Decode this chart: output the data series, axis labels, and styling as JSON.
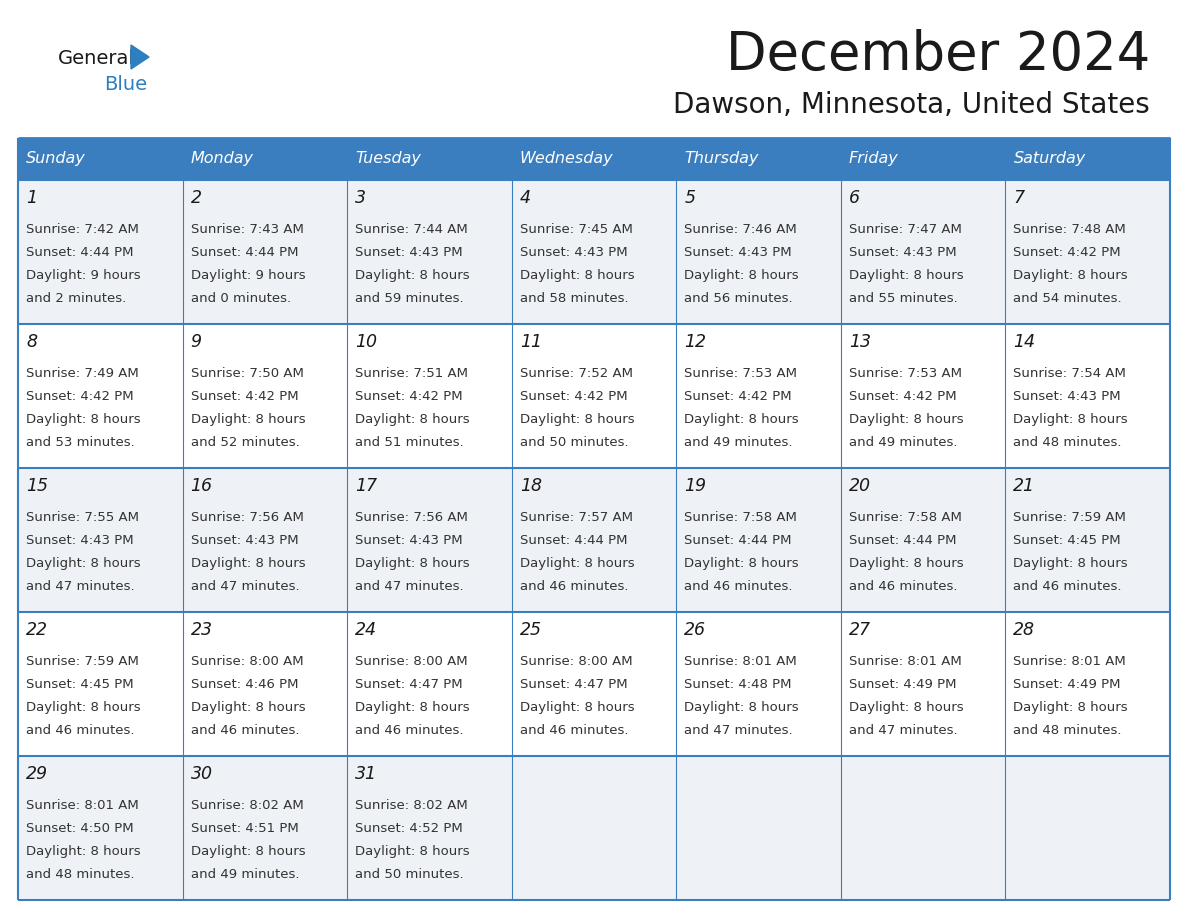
{
  "title": "December 2024",
  "subtitle": "Dawson, Minnesota, United States",
  "header_bg_color": "#3a7ebf",
  "header_text_color": "#FFFFFF",
  "border_color": "#3a7ebf",
  "cell_bg_light": "#eef2f7",
  "cell_bg_white": "#FFFFFF",
  "day_headers": [
    "Sunday",
    "Monday",
    "Tuesday",
    "Wednesday",
    "Thursday",
    "Friday",
    "Saturday"
  ],
  "days": [
    {
      "day": 1,
      "col": 0,
      "row": 0,
      "sunrise": "7:42 AM",
      "sunset": "4:44 PM",
      "dl1": "Daylight: 9 hours",
      "dl2": "and 2 minutes."
    },
    {
      "day": 2,
      "col": 1,
      "row": 0,
      "sunrise": "7:43 AM",
      "sunset": "4:44 PM",
      "dl1": "Daylight: 9 hours",
      "dl2": "and 0 minutes."
    },
    {
      "day": 3,
      "col": 2,
      "row": 0,
      "sunrise": "7:44 AM",
      "sunset": "4:43 PM",
      "dl1": "Daylight: 8 hours",
      "dl2": "and 59 minutes."
    },
    {
      "day": 4,
      "col": 3,
      "row": 0,
      "sunrise": "7:45 AM",
      "sunset": "4:43 PM",
      "dl1": "Daylight: 8 hours",
      "dl2": "and 58 minutes."
    },
    {
      "day": 5,
      "col": 4,
      "row": 0,
      "sunrise": "7:46 AM",
      "sunset": "4:43 PM",
      "dl1": "Daylight: 8 hours",
      "dl2": "and 56 minutes."
    },
    {
      "day": 6,
      "col": 5,
      "row": 0,
      "sunrise": "7:47 AM",
      "sunset": "4:43 PM",
      "dl1": "Daylight: 8 hours",
      "dl2": "and 55 minutes."
    },
    {
      "day": 7,
      "col": 6,
      "row": 0,
      "sunrise": "7:48 AM",
      "sunset": "4:42 PM",
      "dl1": "Daylight: 8 hours",
      "dl2": "and 54 minutes."
    },
    {
      "day": 8,
      "col": 0,
      "row": 1,
      "sunrise": "7:49 AM",
      "sunset": "4:42 PM",
      "dl1": "Daylight: 8 hours",
      "dl2": "and 53 minutes."
    },
    {
      "day": 9,
      "col": 1,
      "row": 1,
      "sunrise": "7:50 AM",
      "sunset": "4:42 PM",
      "dl1": "Daylight: 8 hours",
      "dl2": "and 52 minutes."
    },
    {
      "day": 10,
      "col": 2,
      "row": 1,
      "sunrise": "7:51 AM",
      "sunset": "4:42 PM",
      "dl1": "Daylight: 8 hours",
      "dl2": "and 51 minutes."
    },
    {
      "day": 11,
      "col": 3,
      "row": 1,
      "sunrise": "7:52 AM",
      "sunset": "4:42 PM",
      "dl1": "Daylight: 8 hours",
      "dl2": "and 50 minutes."
    },
    {
      "day": 12,
      "col": 4,
      "row": 1,
      "sunrise": "7:53 AM",
      "sunset": "4:42 PM",
      "dl1": "Daylight: 8 hours",
      "dl2": "and 49 minutes."
    },
    {
      "day": 13,
      "col": 5,
      "row": 1,
      "sunrise": "7:53 AM",
      "sunset": "4:42 PM",
      "dl1": "Daylight: 8 hours",
      "dl2": "and 49 minutes."
    },
    {
      "day": 14,
      "col": 6,
      "row": 1,
      "sunrise": "7:54 AM",
      "sunset": "4:43 PM",
      "dl1": "Daylight: 8 hours",
      "dl2": "and 48 minutes."
    },
    {
      "day": 15,
      "col": 0,
      "row": 2,
      "sunrise": "7:55 AM",
      "sunset": "4:43 PM",
      "dl1": "Daylight: 8 hours",
      "dl2": "and 47 minutes."
    },
    {
      "day": 16,
      "col": 1,
      "row": 2,
      "sunrise": "7:56 AM",
      "sunset": "4:43 PM",
      "dl1": "Daylight: 8 hours",
      "dl2": "and 47 minutes."
    },
    {
      "day": 17,
      "col": 2,
      "row": 2,
      "sunrise": "7:56 AM",
      "sunset": "4:43 PM",
      "dl1": "Daylight: 8 hours",
      "dl2": "and 47 minutes."
    },
    {
      "day": 18,
      "col": 3,
      "row": 2,
      "sunrise": "7:57 AM",
      "sunset": "4:44 PM",
      "dl1": "Daylight: 8 hours",
      "dl2": "and 46 minutes."
    },
    {
      "day": 19,
      "col": 4,
      "row": 2,
      "sunrise": "7:58 AM",
      "sunset": "4:44 PM",
      "dl1": "Daylight: 8 hours",
      "dl2": "and 46 minutes."
    },
    {
      "day": 20,
      "col": 5,
      "row": 2,
      "sunrise": "7:58 AM",
      "sunset": "4:44 PM",
      "dl1": "Daylight: 8 hours",
      "dl2": "and 46 minutes."
    },
    {
      "day": 21,
      "col": 6,
      "row": 2,
      "sunrise": "7:59 AM",
      "sunset": "4:45 PM",
      "dl1": "Daylight: 8 hours",
      "dl2": "and 46 minutes."
    },
    {
      "day": 22,
      "col": 0,
      "row": 3,
      "sunrise": "7:59 AM",
      "sunset": "4:45 PM",
      "dl1": "Daylight: 8 hours",
      "dl2": "and 46 minutes."
    },
    {
      "day": 23,
      "col": 1,
      "row": 3,
      "sunrise": "8:00 AM",
      "sunset": "4:46 PM",
      "dl1": "Daylight: 8 hours",
      "dl2": "and 46 minutes."
    },
    {
      "day": 24,
      "col": 2,
      "row": 3,
      "sunrise": "8:00 AM",
      "sunset": "4:47 PM",
      "dl1": "Daylight: 8 hours",
      "dl2": "and 46 minutes."
    },
    {
      "day": 25,
      "col": 3,
      "row": 3,
      "sunrise": "8:00 AM",
      "sunset": "4:47 PM",
      "dl1": "Daylight: 8 hours",
      "dl2": "and 46 minutes."
    },
    {
      "day": 26,
      "col": 4,
      "row": 3,
      "sunrise": "8:01 AM",
      "sunset": "4:48 PM",
      "dl1": "Daylight: 8 hours",
      "dl2": "and 47 minutes."
    },
    {
      "day": 27,
      "col": 5,
      "row": 3,
      "sunrise": "8:01 AM",
      "sunset": "4:49 PM",
      "dl1": "Daylight: 8 hours",
      "dl2": "and 47 minutes."
    },
    {
      "day": 28,
      "col": 6,
      "row": 3,
      "sunrise": "8:01 AM",
      "sunset": "4:49 PM",
      "dl1": "Daylight: 8 hours",
      "dl2": "and 48 minutes."
    },
    {
      "day": 29,
      "col": 0,
      "row": 4,
      "sunrise": "8:01 AM",
      "sunset": "4:50 PM",
      "dl1": "Daylight: 8 hours",
      "dl2": "and 48 minutes."
    },
    {
      "day": 30,
      "col": 1,
      "row": 4,
      "sunrise": "8:02 AM",
      "sunset": "4:51 PM",
      "dl1": "Daylight: 8 hours",
      "dl2": "and 49 minutes."
    },
    {
      "day": 31,
      "col": 2,
      "row": 4,
      "sunrise": "8:02 AM",
      "sunset": "4:52 PM",
      "dl1": "Daylight: 8 hours",
      "dl2": "and 50 minutes."
    }
  ]
}
